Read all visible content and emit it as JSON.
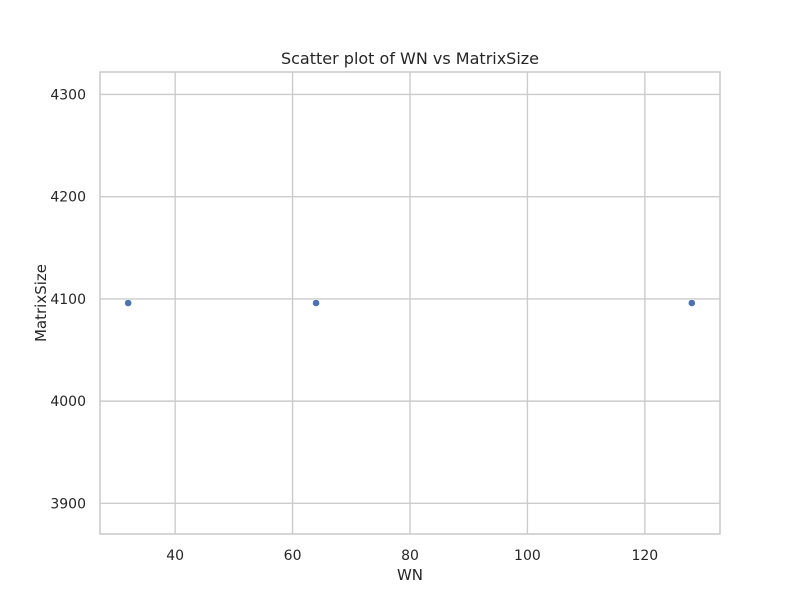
{
  "chart_data": {
    "type": "scatter",
    "title": "Scatter plot of WN vs MatrixSize",
    "xlabel": "WN",
    "ylabel": "MatrixSize",
    "xlim": [
      27.2,
      132.8
    ],
    "ylim": [
      3870,
      4322
    ],
    "xticks": [
      40,
      60,
      80,
      100,
      120
    ],
    "yticks": [
      3900,
      4000,
      4100,
      4200,
      4300
    ],
    "grid": true,
    "points": [
      {
        "x": 32,
        "y": 4096
      },
      {
        "x": 64,
        "y": 4096
      },
      {
        "x": 128,
        "y": 4096
      }
    ],
    "colors": {
      "point": "#4c72b0",
      "grid": "#cccccc",
      "text": "#262626"
    }
  }
}
